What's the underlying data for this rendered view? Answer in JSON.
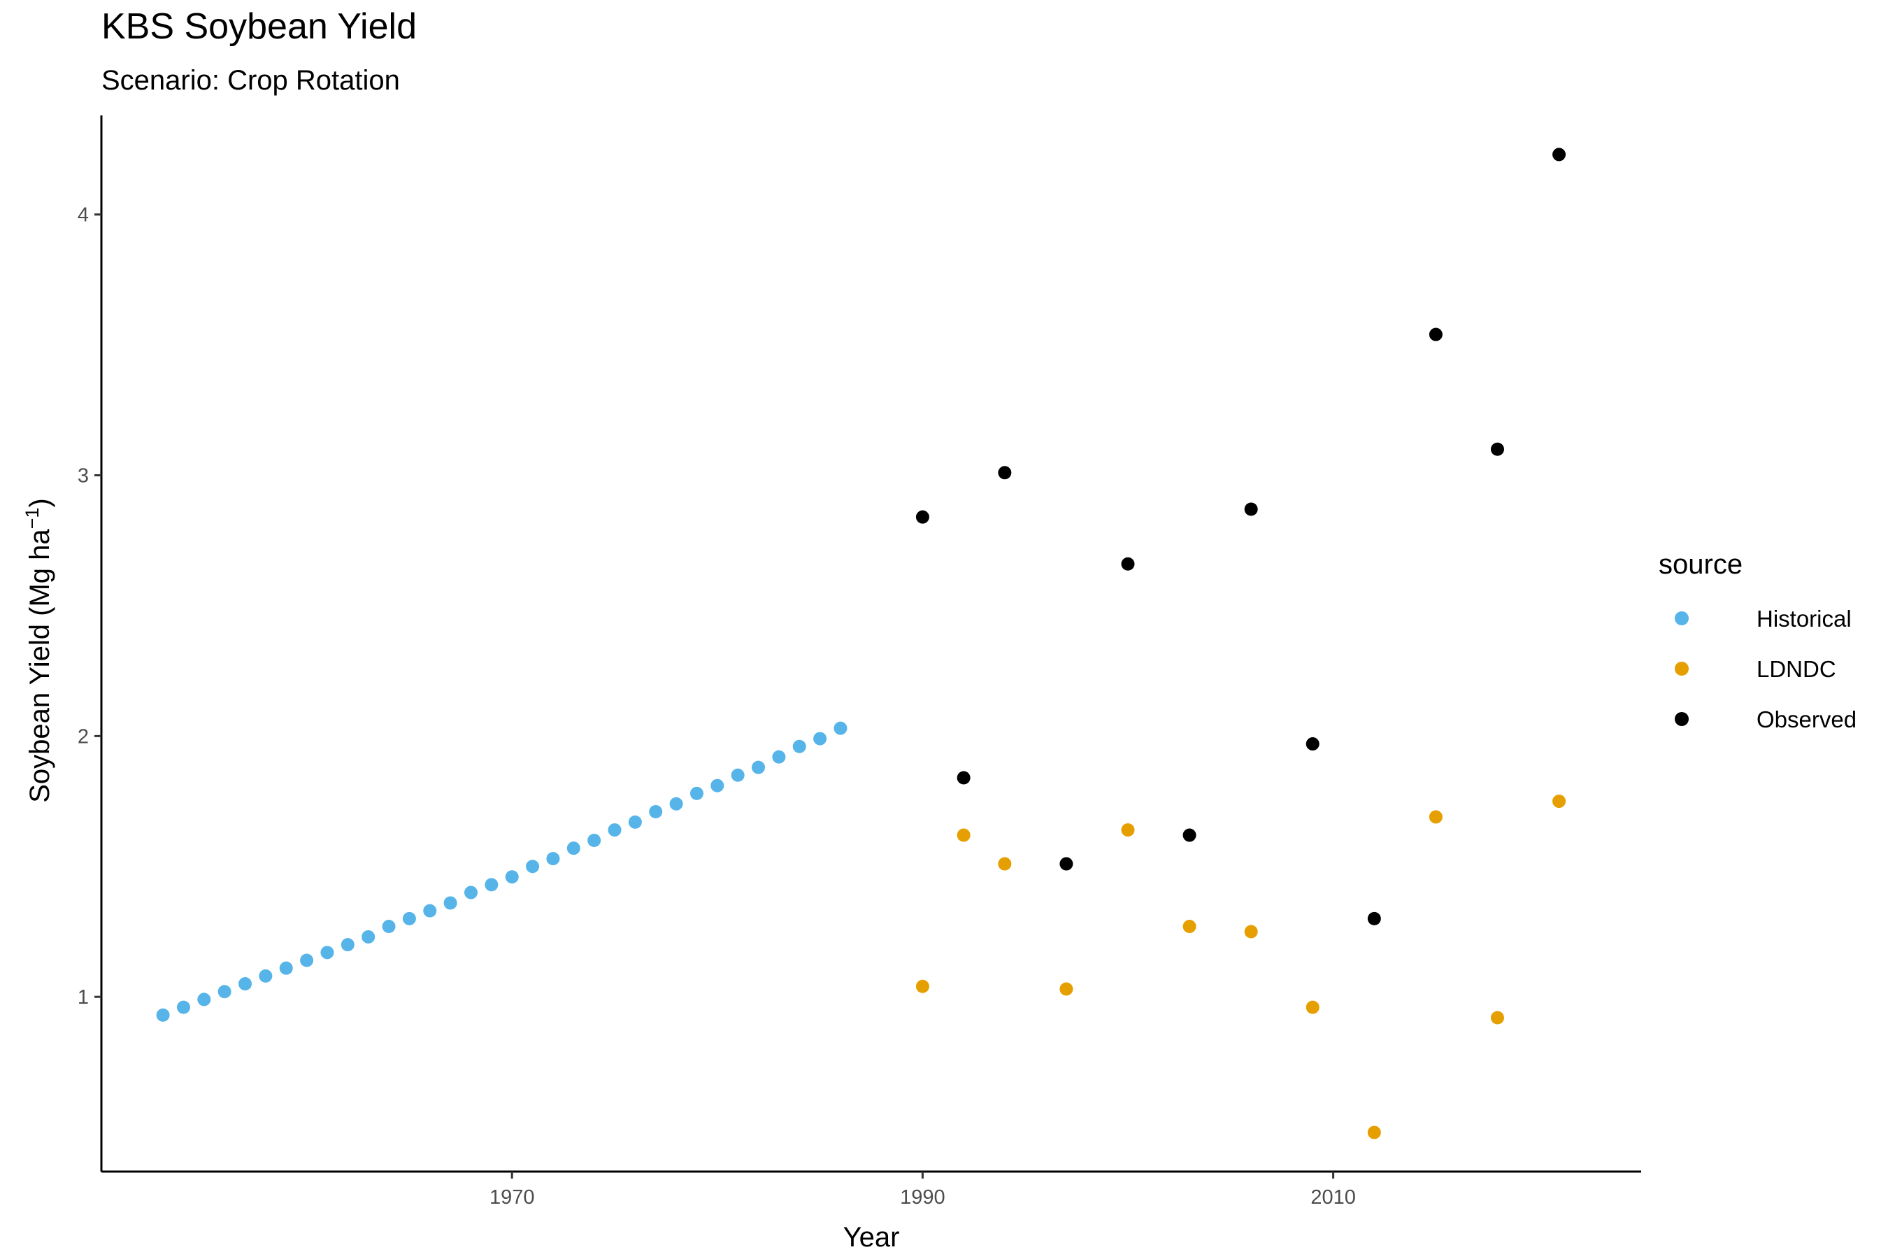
{
  "chart_data": {
    "type": "scatter",
    "title": "KBS Soybean Yield",
    "subtitle": "Scenario: Crop Rotation",
    "xlabel": "Year",
    "ylabel_text": "Soybean Yield (Mg ha",
    "ylabel_sup": "−1",
    "ylabel_close": ")",
    "xlim": [
      1950,
      2025
    ],
    "ylim": [
      0.33,
      4.38
    ],
    "x_ticks": [
      1970,
      1990,
      2010
    ],
    "y_ticks": [
      1,
      2,
      3,
      4
    ],
    "grid": false,
    "legend": {
      "title": "source",
      "position": "right"
    },
    "series": [
      {
        "name": "Historical",
        "color": "#56B4E9",
        "points": [
          [
            1953,
            0.93
          ],
          [
            1954,
            0.96
          ],
          [
            1955,
            0.99
          ],
          [
            1956,
            1.02
          ],
          [
            1957,
            1.05
          ],
          [
            1958,
            1.08
          ],
          [
            1959,
            1.11
          ],
          [
            1960,
            1.14
          ],
          [
            1961,
            1.17
          ],
          [
            1962,
            1.2
          ],
          [
            1963,
            1.23
          ],
          [
            1964,
            1.27
          ],
          [
            1965,
            1.3
          ],
          [
            1966,
            1.33
          ],
          [
            1967,
            1.36
          ],
          [
            1968,
            1.4
          ],
          [
            1969,
            1.43
          ],
          [
            1970,
            1.46
          ],
          [
            1971,
            1.5
          ],
          [
            1972,
            1.53
          ],
          [
            1973,
            1.57
          ],
          [
            1974,
            1.6
          ],
          [
            1975,
            1.64
          ],
          [
            1976,
            1.67
          ],
          [
            1977,
            1.71
          ],
          [
            1978,
            1.74
          ],
          [
            1979,
            1.78
          ],
          [
            1980,
            1.81
          ],
          [
            1981,
            1.85
          ],
          [
            1982,
            1.88
          ],
          [
            1983,
            1.92
          ],
          [
            1984,
            1.96
          ],
          [
            1985,
            1.99
          ],
          [
            1986,
            2.03
          ]
        ]
      },
      {
        "name": "LDNDC",
        "color": "#E69F00",
        "points": [
          [
            1990,
            1.04
          ],
          [
            1992,
            1.62
          ],
          [
            1994,
            1.51
          ],
          [
            1997,
            1.03
          ],
          [
            2000,
            1.64
          ],
          [
            2003,
            1.27
          ],
          [
            2006,
            1.25
          ],
          [
            2009,
            0.96
          ],
          [
            2012,
            0.48
          ],
          [
            2015,
            1.69
          ],
          [
            2018,
            0.92
          ],
          [
            2021,
            1.75
          ]
        ]
      },
      {
        "name": "Observed",
        "color": "#000000",
        "points": [
          [
            1990,
            2.84
          ],
          [
            1992,
            1.84
          ],
          [
            1994,
            3.01
          ],
          [
            1997,
            1.51
          ],
          [
            2000,
            2.66
          ],
          [
            2003,
            1.62
          ],
          [
            2006,
            2.87
          ],
          [
            2009,
            1.97
          ],
          [
            2012,
            1.3
          ],
          [
            2015,
            3.54
          ],
          [
            2018,
            3.1
          ],
          [
            2021,
            4.23
          ]
        ]
      }
    ]
  }
}
